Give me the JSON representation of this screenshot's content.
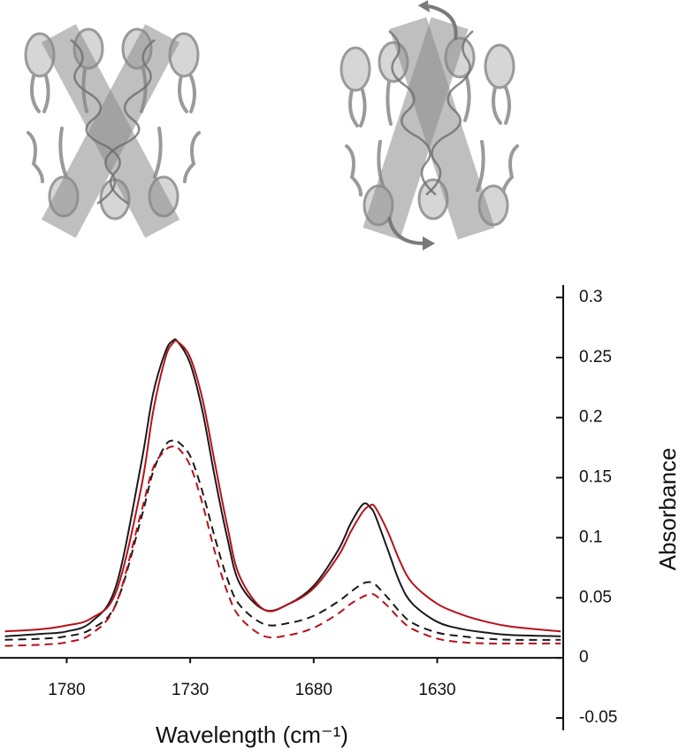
{
  "chart_data": {
    "type": "line",
    "x_label": "Wavelength (cm⁻¹)",
    "y_label": "Absorbance",
    "x": [
      1805,
      1790,
      1780,
      1770,
      1760,
      1750,
      1745,
      1740,
      1737,
      1735,
      1730,
      1725,
      1720,
      1715,
      1710,
      1700,
      1690,
      1680,
      1670,
      1665,
      1660,
      1657,
      1655,
      1650,
      1645,
      1640,
      1630,
      1620,
      1610,
      1600,
      1580
    ],
    "series": [
      {
        "color": "#1a1a1a",
        "dashed": false,
        "values": [
          0.018,
          0.02,
          0.022,
          0.03,
          0.06,
          0.16,
          0.22,
          0.255,
          0.264,
          0.263,
          0.245,
          0.205,
          0.15,
          0.1,
          0.062,
          0.04,
          0.045,
          0.06,
          0.09,
          0.112,
          0.128,
          0.125,
          0.118,
          0.09,
          0.062,
          0.045,
          0.03,
          0.024,
          0.021,
          0.019,
          0.018
        ]
      },
      {
        "color": "#b5121b",
        "dashed": false,
        "values": [
          0.022,
          0.024,
          0.027,
          0.033,
          0.055,
          0.14,
          0.205,
          0.25,
          0.262,
          0.263,
          0.25,
          0.215,
          0.162,
          0.11,
          0.068,
          0.04,
          0.045,
          0.058,
          0.085,
          0.105,
          0.122,
          0.127,
          0.125,
          0.105,
          0.08,
          0.062,
          0.045,
          0.036,
          0.03,
          0.026,
          0.022
        ]
      },
      {
        "color": "#1a1a1a",
        "dashed": true,
        "values": [
          0.015,
          0.016,
          0.018,
          0.024,
          0.045,
          0.115,
          0.155,
          0.177,
          0.181,
          0.18,
          0.168,
          0.138,
          0.1,
          0.066,
          0.044,
          0.028,
          0.029,
          0.035,
          0.047,
          0.055,
          0.062,
          0.063,
          0.061,
          0.05,
          0.038,
          0.029,
          0.021,
          0.018,
          0.016,
          0.015,
          0.015
        ]
      },
      {
        "color": "#b5121b",
        "dashed": true,
        "values": [
          0.01,
          0.011,
          0.013,
          0.02,
          0.045,
          0.12,
          0.158,
          0.173,
          0.176,
          0.175,
          0.16,
          0.128,
          0.088,
          0.055,
          0.034,
          0.018,
          0.019,
          0.025,
          0.037,
          0.045,
          0.051,
          0.053,
          0.052,
          0.043,
          0.032,
          0.024,
          0.016,
          0.013,
          0.012,
          0.012,
          0.012
        ]
      }
    ],
    "xlim": [
      1807,
      1579
    ],
    "xticks": [
      1780,
      1730,
      1680,
      1630
    ],
    "ylim": [
      -0.05,
      0.3
    ],
    "yticks": [
      0.3,
      0.25,
      0.2,
      0.15,
      0.1,
      0.05,
      0,
      -0.05
    ]
  }
}
